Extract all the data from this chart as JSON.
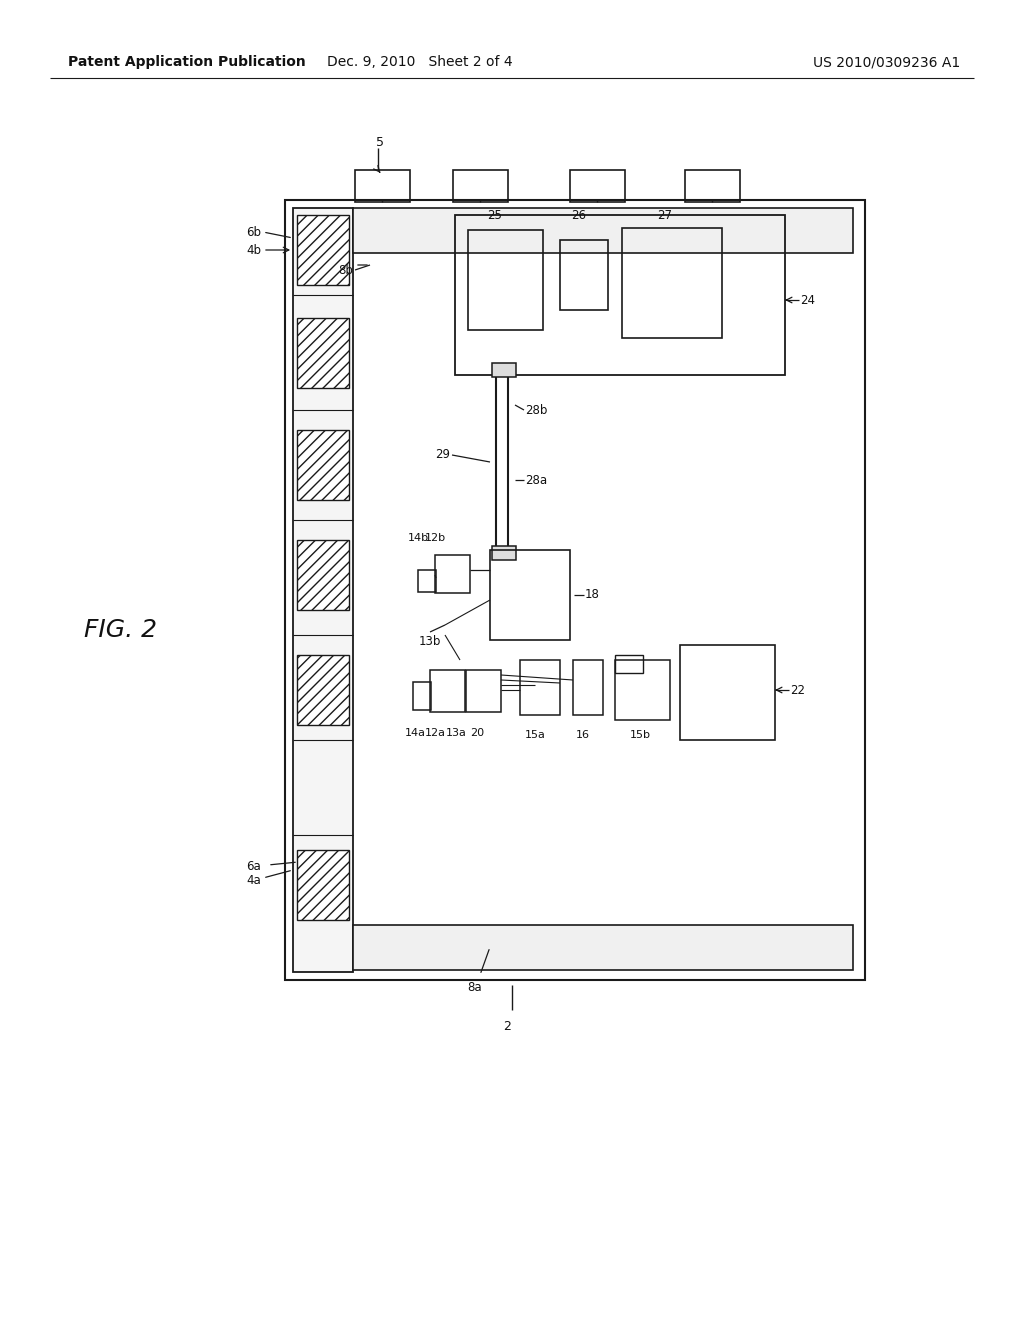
{
  "bg_color": "#ffffff",
  "header_left": "Patent Application Publication",
  "header_center": "Dec. 9, 2010   Sheet 2 of 4",
  "header_right": "US 2010/0309236 A1",
  "fig_label": "FIG. 2",
  "outline_color": "#1a1a1a"
}
